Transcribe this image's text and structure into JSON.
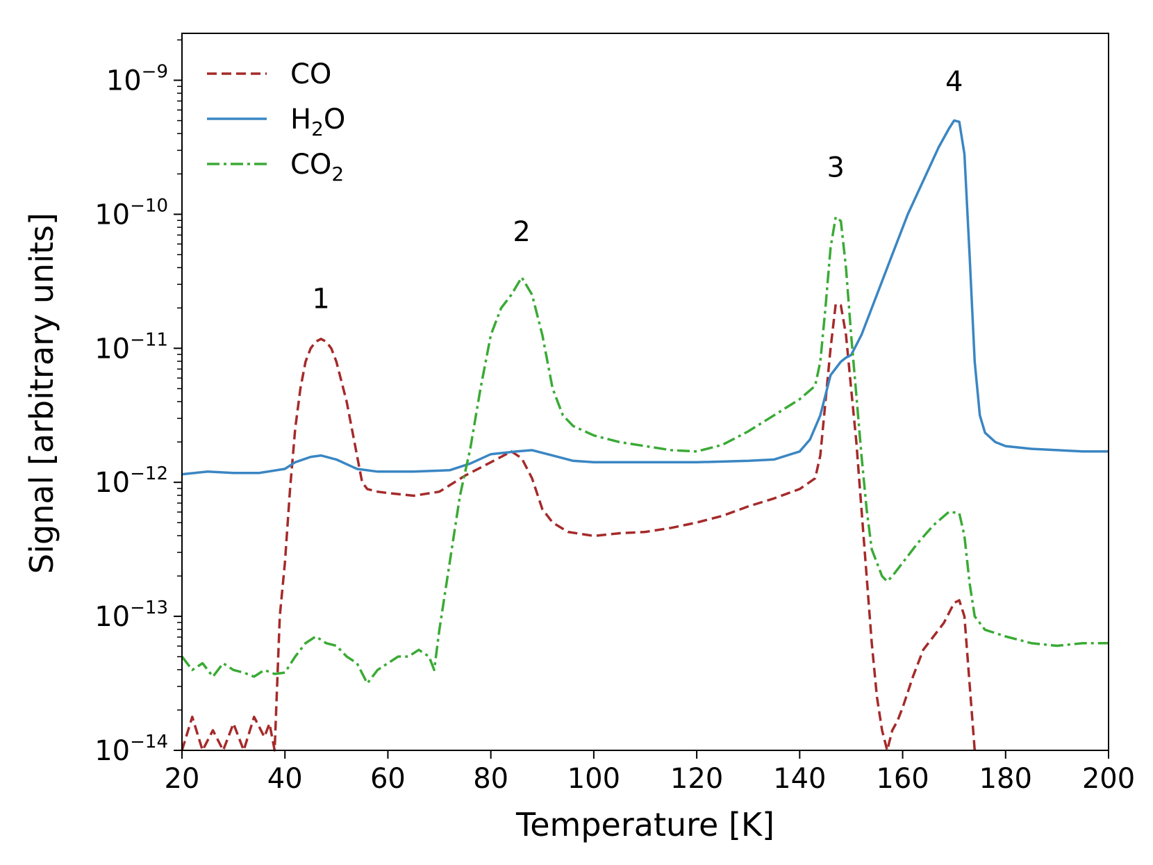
{
  "chart_data": {
    "type": "line",
    "xlabel": "Temperature [K]",
    "ylabel": "Signal [arbitrary units]",
    "xlim": [
      20,
      200
    ],
    "ylim_log10": [
      -14,
      -8.65
    ],
    "yscale": "log",
    "xticks": [
      20,
      40,
      60,
      80,
      100,
      120,
      140,
      160,
      180,
      200
    ],
    "yticks": [
      {
        "base": "10",
        "exp": "−14",
        "log": -14
      },
      {
        "base": "10",
        "exp": "−13",
        "log": -13
      },
      {
        "base": "10",
        "exp": "−12",
        "log": -12
      },
      {
        "base": "10",
        "exp": "−11",
        "log": -11
      },
      {
        "base": "10",
        "exp": "−10",
        "log": -10
      },
      {
        "base": "10",
        "exp": "−9",
        "log": -9
      }
    ],
    "legend_position": "top-left",
    "peak_labels": [
      {
        "text": "1",
        "x": 47,
        "y_log": -10.7
      },
      {
        "text": "2",
        "x": 86,
        "y_log": -10.2
      },
      {
        "text": "3",
        "x": 147,
        "y_log": -9.72
      },
      {
        "text": "4",
        "x": 170,
        "y_log": -9.08
      }
    ],
    "series": [
      {
        "name": "CO",
        "legend": {
          "main": "CO",
          "sub": ""
        },
        "color": "#a52a2a",
        "dash": "14,7",
        "points": [
          [
            20,
            -14.0
          ],
          [
            22,
            -13.75
          ],
          [
            24,
            -14.0
          ],
          [
            26,
            -13.85
          ],
          [
            28,
            -14.0
          ],
          [
            30,
            -13.8
          ],
          [
            32,
            -14.0
          ],
          [
            34,
            -13.75
          ],
          [
            36,
            -13.9
          ],
          [
            37,
            -13.8
          ],
          [
            38,
            -14.0
          ],
          [
            39,
            -13.0
          ],
          [
            40,
            -12.6
          ],
          [
            41,
            -12.05
          ],
          [
            42,
            -11.6
          ],
          [
            43,
            -11.3
          ],
          [
            44,
            -11.1
          ],
          [
            45,
            -11.0
          ],
          [
            46,
            -10.95
          ],
          [
            47,
            -10.93
          ],
          [
            48,
            -10.95
          ],
          [
            49,
            -11.0
          ],
          [
            50,
            -11.1
          ],
          [
            52,
            -11.4
          ],
          [
            54,
            -11.8
          ],
          [
            55,
            -12.0
          ],
          [
            56,
            -12.05
          ],
          [
            58,
            -12.07
          ],
          [
            60,
            -12.08
          ],
          [
            65,
            -12.1
          ],
          [
            70,
            -12.07
          ],
          [
            75,
            -11.95
          ],
          [
            80,
            -11.85
          ],
          [
            84,
            -11.77
          ],
          [
            86,
            -11.82
          ],
          [
            88,
            -11.97
          ],
          [
            90,
            -12.2
          ],
          [
            92,
            -12.3
          ],
          [
            95,
            -12.37
          ],
          [
            100,
            -12.4
          ],
          [
            105,
            -12.38
          ],
          [
            110,
            -12.37
          ],
          [
            115,
            -12.34
          ],
          [
            120,
            -12.3
          ],
          [
            125,
            -12.25
          ],
          [
            130,
            -12.18
          ],
          [
            135,
            -12.12
          ],
          [
            140,
            -12.05
          ],
          [
            143,
            -11.97
          ],
          [
            144,
            -11.8
          ],
          [
            145,
            -11.4
          ],
          [
            146,
            -11.0
          ],
          [
            147,
            -10.67
          ],
          [
            148,
            -10.68
          ],
          [
            149,
            -10.9
          ],
          [
            150,
            -11.3
          ],
          [
            151,
            -11.7
          ],
          [
            152,
            -12.2
          ],
          [
            153,
            -12.7
          ],
          [
            154,
            -13.2
          ],
          [
            155,
            -13.6
          ],
          [
            156,
            -13.85
          ],
          [
            157,
            -14.0
          ],
          [
            158,
            -13.85
          ],
          [
            159,
            -13.78
          ],
          [
            160,
            -13.68
          ],
          [
            162,
            -13.45
          ],
          [
            164,
            -13.25
          ],
          [
            166,
            -13.15
          ],
          [
            168,
            -13.05
          ],
          [
            170,
            -12.9
          ],
          [
            171,
            -12.88
          ],
          [
            172,
            -13.0
          ],
          [
            173,
            -13.5
          ],
          [
            174,
            -14.0
          ]
        ]
      },
      {
        "name": "H2O",
        "legend": {
          "main": "H",
          "sub": "2",
          "tail": "O"
        },
        "color": "#3a86c3",
        "dash": "",
        "points": [
          [
            20,
            -11.94
          ],
          [
            25,
            -11.92
          ],
          [
            30,
            -11.93
          ],
          [
            35,
            -11.93
          ],
          [
            40,
            -11.9
          ],
          [
            42,
            -11.85
          ],
          [
            45,
            -11.81
          ],
          [
            47,
            -11.8
          ],
          [
            50,
            -11.83
          ],
          [
            54,
            -11.9
          ],
          [
            58,
            -11.92
          ],
          [
            65,
            -11.92
          ],
          [
            72,
            -11.91
          ],
          [
            76,
            -11.86
          ],
          [
            80,
            -11.79
          ],
          [
            85,
            -11.77
          ],
          [
            88,
            -11.76
          ],
          [
            92,
            -11.8
          ],
          [
            96,
            -11.84
          ],
          [
            100,
            -11.85
          ],
          [
            110,
            -11.85
          ],
          [
            120,
            -11.85
          ],
          [
            130,
            -11.84
          ],
          [
            135,
            -11.83
          ],
          [
            140,
            -11.77
          ],
          [
            142,
            -11.68
          ],
          [
            144,
            -11.5
          ],
          [
            146,
            -11.2
          ],
          [
            148,
            -11.1
          ],
          [
            149,
            -11.07
          ],
          [
            150,
            -11.05
          ],
          [
            152,
            -10.9
          ],
          [
            155,
            -10.6
          ],
          [
            158,
            -10.3
          ],
          [
            161,
            -10.0
          ],
          [
            164,
            -9.75
          ],
          [
            167,
            -9.5
          ],
          [
            169,
            -9.36
          ],
          [
            170,
            -9.3
          ],
          [
            171,
            -9.31
          ],
          [
            172,
            -9.55
          ],
          [
            173,
            -10.3
          ],
          [
            174,
            -11.1
          ],
          [
            175,
            -11.5
          ],
          [
            176,
            -11.63
          ],
          [
            178,
            -11.7
          ],
          [
            180,
            -11.73
          ],
          [
            185,
            -11.75
          ],
          [
            190,
            -11.76
          ],
          [
            195,
            -11.77
          ],
          [
            200,
            -11.77
          ]
        ]
      },
      {
        "name": "CO2",
        "legend": {
          "main": "CO",
          "sub": "2",
          "tail": ""
        },
        "color": "#3aaa35",
        "dash": "18,6,4,6",
        "points": [
          [
            20,
            -13.3
          ],
          [
            22,
            -13.4
          ],
          [
            24,
            -13.35
          ],
          [
            26,
            -13.45
          ],
          [
            28,
            -13.35
          ],
          [
            30,
            -13.4
          ],
          [
            32,
            -13.42
          ],
          [
            34,
            -13.45
          ],
          [
            36,
            -13.4
          ],
          [
            38,
            -13.43
          ],
          [
            40,
            -13.42
          ],
          [
            42,
            -13.3
          ],
          [
            44,
            -13.2
          ],
          [
            46,
            -13.15
          ],
          [
            48,
            -13.2
          ],
          [
            50,
            -13.22
          ],
          [
            52,
            -13.3
          ],
          [
            54,
            -13.35
          ],
          [
            56,
            -13.5
          ],
          [
            58,
            -13.4
          ],
          [
            60,
            -13.35
          ],
          [
            62,
            -13.3
          ],
          [
            64,
            -13.3
          ],
          [
            66,
            -13.25
          ],
          [
            68,
            -13.3
          ],
          [
            69,
            -13.4
          ],
          [
            70,
            -13.1
          ],
          [
            72,
            -12.6
          ],
          [
            74,
            -12.1
          ],
          [
            76,
            -11.75
          ],
          [
            78,
            -11.3
          ],
          [
            80,
            -10.9
          ],
          [
            82,
            -10.7
          ],
          [
            84,
            -10.6
          ],
          [
            86,
            -10.47
          ],
          [
            88,
            -10.6
          ],
          [
            90,
            -10.9
          ],
          [
            92,
            -11.3
          ],
          [
            94,
            -11.5
          ],
          [
            96,
            -11.58
          ],
          [
            100,
            -11.65
          ],
          [
            105,
            -11.7
          ],
          [
            110,
            -11.73
          ],
          [
            115,
            -11.76
          ],
          [
            120,
            -11.77
          ],
          [
            125,
            -11.72
          ],
          [
            130,
            -11.62
          ],
          [
            135,
            -11.5
          ],
          [
            140,
            -11.38
          ],
          [
            143,
            -11.28
          ],
          [
            144,
            -11.1
          ],
          [
            145,
            -10.7
          ],
          [
            146,
            -10.25
          ],
          [
            147,
            -10.02
          ],
          [
            148,
            -10.05
          ],
          [
            149,
            -10.4
          ],
          [
            150,
            -10.9
          ],
          [
            151,
            -11.35
          ],
          [
            152,
            -11.8
          ],
          [
            153,
            -12.2
          ],
          [
            154,
            -12.5
          ],
          [
            155,
            -12.6
          ],
          [
            156,
            -12.7
          ],
          [
            157,
            -12.74
          ],
          [
            158,
            -12.7
          ],
          [
            160,
            -12.6
          ],
          [
            163,
            -12.45
          ],
          [
            166,
            -12.32
          ],
          [
            169,
            -12.22
          ],
          [
            171,
            -12.23
          ],
          [
            172,
            -12.4
          ],
          [
            173,
            -12.75
          ],
          [
            174,
            -13.0
          ],
          [
            176,
            -13.1
          ],
          [
            180,
            -13.15
          ],
          [
            185,
            -13.2
          ],
          [
            190,
            -13.22
          ],
          [
            195,
            -13.2
          ],
          [
            200,
            -13.2
          ]
        ]
      }
    ]
  }
}
